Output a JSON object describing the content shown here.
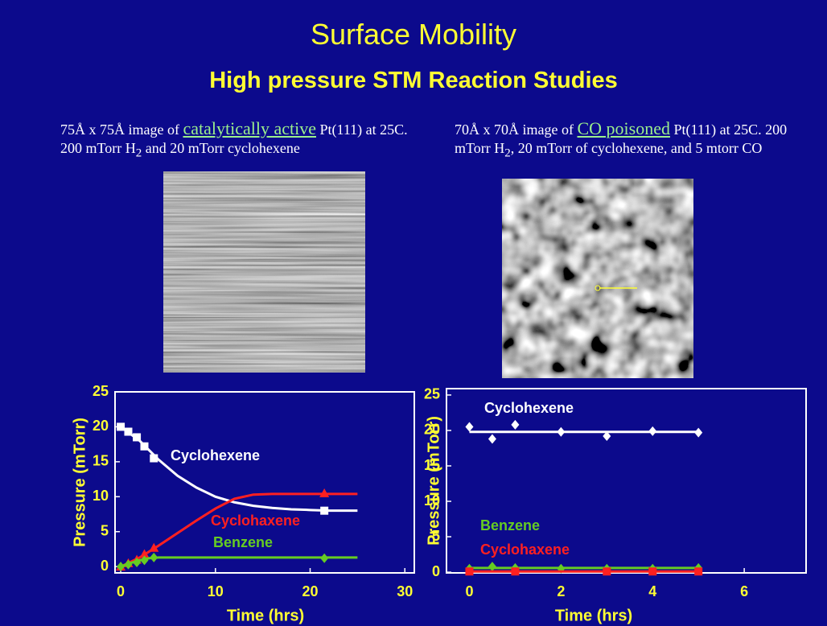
{
  "slide": {
    "title": "Surface Mobility",
    "subtitle": "High pressure STM Reaction Studies",
    "captions": [
      {
        "before": "75Å x 75Å image of ",
        "link": "catalytically active",
        "after": " Pt(111) at 25C.  200 mTorr H",
        "subscript": "2",
        "end": "  and 20 mTorr cyclohexene"
      },
      {
        "before": "70Å x 70Å image of ",
        "link": "CO poisoned",
        "after": "  Pt(111) at 25C.   200 mTorr H",
        "subscript": "2",
        "end": ",  20 mTorr of cyclohexene, and 5 mtorr CO"
      }
    ]
  },
  "chart_data": [
    {
      "type": "line",
      "xlabel": "Time (hrs)",
      "ylabel": "Pressure (mTorr)",
      "xlim": [
        -0.6,
        31
      ],
      "ylim": [
        -0.9,
        25
      ],
      "xticks": [
        0,
        10,
        20,
        30
      ],
      "yticks": [
        0,
        5,
        10,
        15,
        20,
        25
      ],
      "series": [
        {
          "name": "Cyclohexene",
          "color": "#ffffff",
          "marker": "square",
          "x": [
            0,
            0.8,
            1.7,
            2.5,
            3.5,
            21.5
          ],
          "values": [
            20,
            19.3,
            18.5,
            17.2,
            15.5,
            8
          ],
          "fit_x": [
            0,
            2,
            4,
            6,
            8,
            10,
            12,
            14,
            16,
            18,
            20,
            22,
            25
          ],
          "fit_values": [
            20,
            18,
            15.3,
            13,
            11.3,
            10,
            9.2,
            8.7,
            8.4,
            8.2,
            8.1,
            8,
            8
          ]
        },
        {
          "name": "Cyclohaxene",
          "color": "#ff2020",
          "marker": "triangle",
          "x": [
            0,
            0.8,
            1.7,
            2.5,
            3.5,
            21.5
          ],
          "values": [
            0,
            0.5,
            1,
            1.8,
            2.7,
            10.5
          ],
          "fit_x": [
            0,
            2,
            4,
            6,
            8,
            10,
            12,
            14,
            16,
            20,
            25
          ],
          "fit_values": [
            0,
            1.3,
            3,
            4.8,
            6.6,
            8.3,
            9.7,
            10.3,
            10.4,
            10.4,
            10.4
          ]
        },
        {
          "name": "Benzene",
          "color": "#66cc22",
          "marker": "diamond",
          "x": [
            0,
            0.8,
            1.7,
            2.5,
            3.5,
            21.5
          ],
          "values": [
            0,
            0.3,
            0.6,
            0.9,
            1.3,
            1.2
          ],
          "fit_x": [
            0,
            1,
            2,
            3,
            4,
            25
          ],
          "fit_values": [
            0,
            0.5,
            0.9,
            1.2,
            1.3,
            1.3
          ]
        }
      ]
    },
    {
      "type": "line",
      "xlabel": "Time (hrs)",
      "ylabel": "Pressure (mTorr)",
      "xlim": [
        -0.5,
        7.35
      ],
      "ylim": [
        -0.1,
        25.9
      ],
      "xticks": [
        0,
        2,
        4,
        6
      ],
      "yticks": [
        0,
        5,
        10,
        15,
        20,
        25
      ],
      "series": [
        {
          "name": "Cyclohexene",
          "color": "#ffffff",
          "marker": "diamond",
          "x": [
            0,
            0.5,
            1,
            2,
            3,
            4,
            5
          ],
          "values": [
            20.5,
            18.8,
            20.8,
            19.8,
            19.2,
            19.9,
            19.7
          ],
          "fit_x": [
            0,
            5
          ],
          "fit_values": [
            19.8,
            19.8
          ]
        },
        {
          "name": "Benzene",
          "color": "#66cc22",
          "marker": "diamond",
          "x": [
            0,
            0.5,
            1,
            2,
            3,
            4,
            5
          ],
          "values": [
            0.5,
            0.8,
            0.6,
            0.5,
            0.5,
            0.5,
            0.6
          ],
          "fit_x": [
            0,
            5
          ],
          "fit_values": [
            0.6,
            0.6
          ]
        },
        {
          "name": "Cyclohaxene",
          "color": "#ff2020",
          "marker": "square",
          "x": [
            0,
            1,
            3,
            4,
            5
          ],
          "values": [
            0.1,
            0.1,
            0.1,
            0.1,
            0.1
          ],
          "fit_x": [
            0,
            5
          ],
          "fit_values": [
            0.1,
            0.1
          ]
        }
      ]
    }
  ]
}
